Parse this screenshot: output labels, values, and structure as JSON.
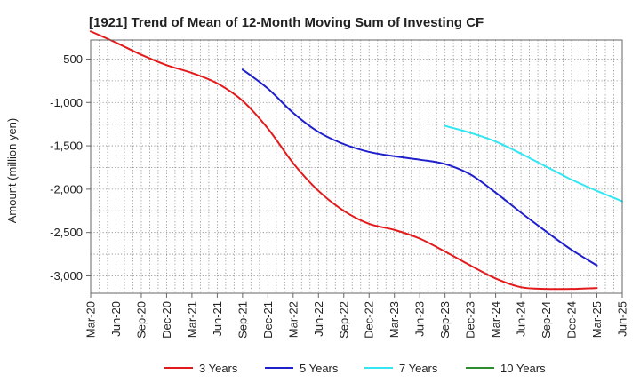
{
  "chart_data": {
    "type": "line",
    "title": "[1921]  Trend of Mean of 12-Month Moving Sum of Investing CF",
    "xlabel": "",
    "ylabel": "Amount (million yen)",
    "x_tick_labels": [
      "Mar-20",
      "Jun-20",
      "Sep-20",
      "Dec-20",
      "Mar-21",
      "Jun-21",
      "Sep-21",
      "Dec-21",
      "Mar-22",
      "Jun-22",
      "Sep-22",
      "Dec-22",
      "Mar-23",
      "Jun-23",
      "Sep-23",
      "Dec-23",
      "Mar-24",
      "Jun-24",
      "Sep-24",
      "Dec-24",
      "Mar-25",
      "Jun-25"
    ],
    "y_ticks": [
      -500,
      -1000,
      -1500,
      -2000,
      -2500,
      -3000
    ],
    "y_tick_labels": [
      "-500",
      "-1,000",
      "-1,500",
      "-2,000",
      "-2,500",
      "-3,000"
    ],
    "ylim": [
      -3200,
      -280
    ],
    "grid": true,
    "legend_position": "bottom",
    "series": [
      {
        "name": "3 Years",
        "color": "#e31a1c",
        "start_index": 0,
        "values": [
          -180,
          -310,
          -450,
          -570,
          -660,
          -780,
          -980,
          -1300,
          -1700,
          -2020,
          -2250,
          -2400,
          -2470,
          -2570,
          -2720,
          -2880,
          -3030,
          -3130,
          -3150,
          -3150,
          -3140
        ]
      },
      {
        "name": "5 Years",
        "color": "#1f1fcc",
        "start_index": 6,
        "values": [
          -620,
          -840,
          -1120,
          -1340,
          -1480,
          -1570,
          -1620,
          -1660,
          -1710,
          -1830,
          -2040,
          -2270,
          -2490,
          -2700,
          -2880
        ]
      },
      {
        "name": "7 Years",
        "color": "#33e6f2",
        "start_index": 14,
        "values": [
          -1270,
          -1350,
          -1450,
          -1590,
          -1740,
          -1890,
          -2020,
          -2140
        ]
      },
      {
        "name": "10 Years",
        "color": "#2e8b2e",
        "start_index": 0,
        "values": []
      }
    ]
  }
}
